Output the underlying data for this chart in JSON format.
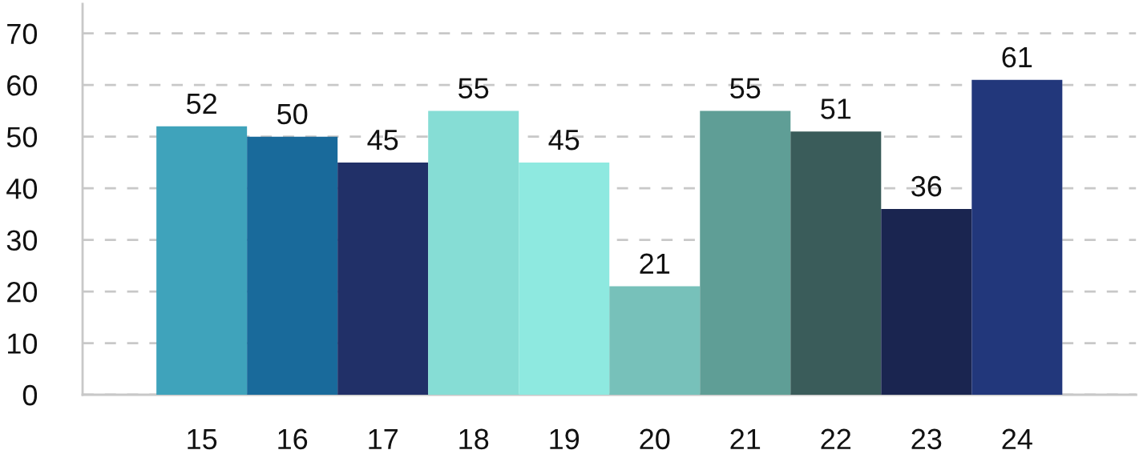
{
  "chart_data": {
    "type": "bar",
    "categories": [
      "15",
      "16",
      "17",
      "18",
      "19",
      "20",
      "21",
      "22",
      "23",
      "24"
    ],
    "values": [
      52,
      50,
      45,
      55,
      45,
      21,
      55,
      51,
      36,
      61
    ],
    "colors": [
      "#3fa3bb",
      "#196a9b",
      "#213068",
      "#86ddd5",
      "#8ee9e0",
      "#77c1ba",
      "#5f9e96",
      "#3a5c5a",
      "#1a2550",
      "#22377b"
    ],
    "ylim": [
      0,
      75.7
    ],
    "yticks": [
      0,
      10,
      20,
      30,
      40,
      50,
      60,
      70
    ],
    "grid": "y",
    "data_labels": true,
    "legend": false
  }
}
